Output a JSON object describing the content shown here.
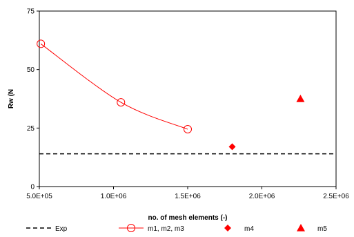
{
  "chart_data": {
    "type": "scatter",
    "title": "",
    "xlabel": "no. of mesh elements (-)",
    "ylabel": "Rw (N",
    "xlim": [
      500000,
      2500000
    ],
    "ylim": [
      0,
      75
    ],
    "x_ticks": [
      500000,
      1000000,
      1500000,
      2000000,
      2500000
    ],
    "x_tick_labels": [
      "5.0E+05",
      "1.0E+06",
      "1.5E+06",
      "2.0E+06",
      "2.5E+06"
    ],
    "y_ticks": [
      0,
      25,
      50,
      75
    ],
    "y_tick_labels": [
      "0",
      "25",
      "50",
      "75"
    ],
    "grid": false,
    "legend_position": "bottom",
    "series": [
      {
        "name": "Exp",
        "kind": "hline",
        "y": 14,
        "style": "dashed",
        "color": "#000000"
      },
      {
        "name": "m1, m2, m3",
        "kind": "line-markers",
        "marker": "circle-open",
        "color": "#ff0000",
        "points": [
          [
            510000,
            61
          ],
          [
            1050000,
            36
          ],
          [
            1500000,
            24.5
          ]
        ]
      },
      {
        "name": "m4",
        "kind": "markers",
        "marker": "diamond",
        "color": "#ff0000",
        "points": [
          [
            1800000,
            17
          ]
        ]
      },
      {
        "name": "m5",
        "kind": "markers",
        "marker": "triangle",
        "color": "#ff0000",
        "points": [
          [
            2260000,
            37.5
          ]
        ]
      }
    ]
  }
}
